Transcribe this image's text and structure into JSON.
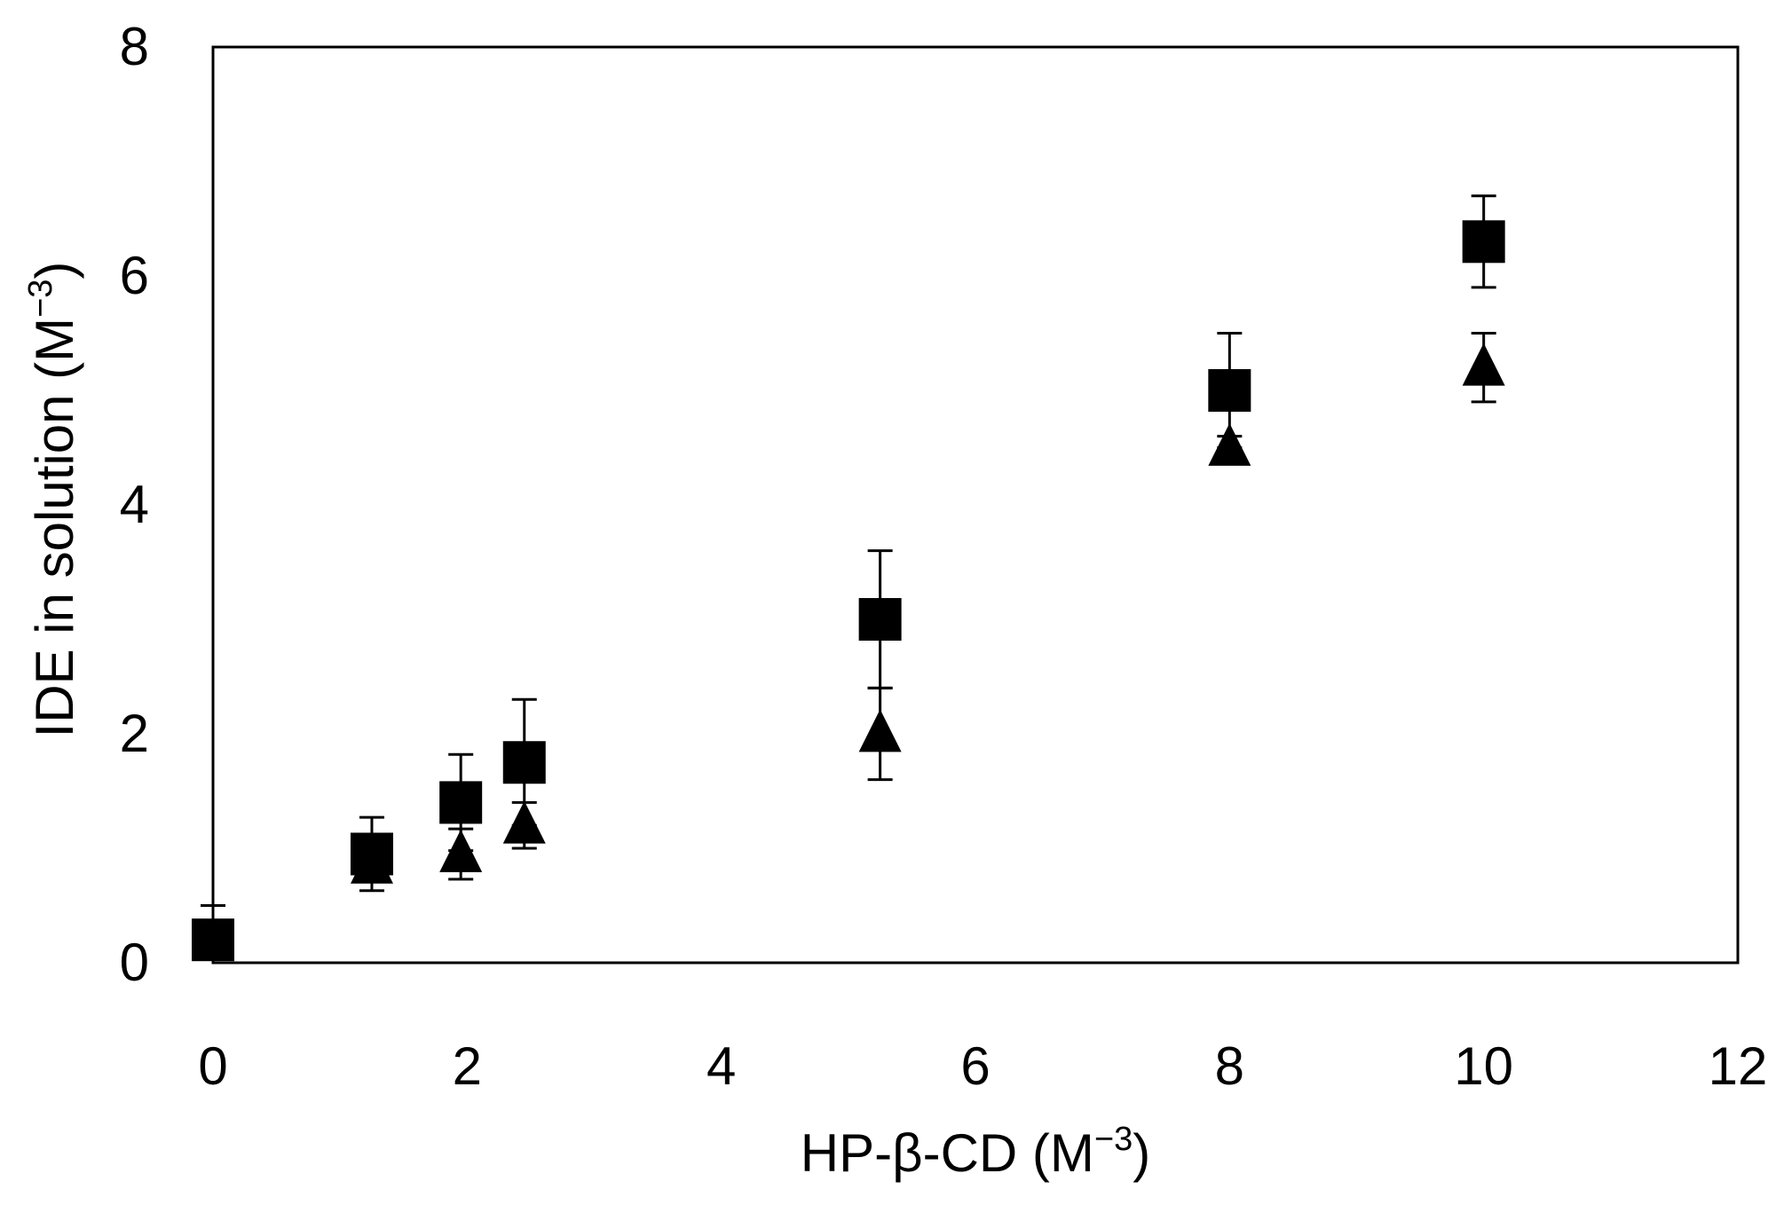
{
  "chart_data": {
    "type": "scatter",
    "title": "",
    "xlabel": "HP-β-CD (M",
    "xlabel_sup": "−3",
    "xlabel_end": ")",
    "ylabel": "IDE in solution (M",
    "ylabel_sup": "−3",
    "ylabel_end": ")",
    "xlim": [
      0,
      12
    ],
    "ylim": [
      0,
      8
    ],
    "xticks": [
      "0",
      "2",
      "4",
      "6",
      "8",
      "10",
      "12"
    ],
    "yticks": [
      "0",
      "2",
      "4",
      "6",
      "8"
    ],
    "grid": false,
    "legend": "none",
    "colors": {
      "marker": "#000000",
      "axis": "#000000",
      "background": "#ffffff"
    },
    "series": [
      {
        "marker": "square",
        "points": [
          {
            "x": 0,
            "y": 0.2,
            "err": 0.3
          },
          {
            "x": 1.25,
            "y": 0.95,
            "err": 0.32
          },
          {
            "x": 1.95,
            "y": 1.4,
            "err": 0.42
          },
          {
            "x": 2.45,
            "y": 1.75,
            "err": 0.55
          },
          {
            "x": 5.25,
            "y": 3.0,
            "err": 0.6
          },
          {
            "x": 8.0,
            "y": 5.0,
            "err": 0.5
          },
          {
            "x": 10.0,
            "y": 6.3,
            "err": 0.4
          }
        ]
      },
      {
        "marker": "triangle",
        "points": [
          {
            "x": 1.25,
            "y": 0.85,
            "err": 0.1
          },
          {
            "x": 1.95,
            "y": 0.95,
            "err": 0.22
          },
          {
            "x": 2.45,
            "y": 1.2,
            "err": 0.2
          },
          {
            "x": 5.25,
            "y": 2.0,
            "err": 0.4
          },
          {
            "x": 8.0,
            "y": 4.5,
            "err": 0.1
          },
          {
            "x": 10.0,
            "y": 5.2,
            "err": 0.3
          }
        ]
      }
    ]
  }
}
